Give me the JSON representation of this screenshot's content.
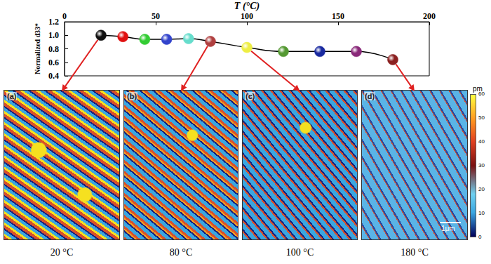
{
  "chart_data": {
    "type": "line",
    "x_label": "T (°C)",
    "y_label": "Normalized d33*",
    "x": [
      20,
      32,
      44,
      56,
      68,
      80,
      100,
      120,
      140,
      160,
      180
    ],
    "values": [
      1.0,
      0.98,
      0.94,
      0.94,
      0.95,
      0.91,
      0.82,
      0.76,
      0.76,
      0.76,
      0.64
    ],
    "color": "#000000",
    "colors": [
      "#111111",
      "#e01010",
      "#33cc33",
      "#3344cc",
      "#66ddcc",
      "#b04040",
      "#eeee44",
      "#559933",
      "#1a2aa0",
      "#8a2a7a",
      "#8b2020"
    ],
    "marker": "sphere",
    "xlim": [
      0,
      200
    ],
    "xticks": [
      0,
      50,
      100,
      150,
      200
    ],
    "ylim": [
      0.4,
      1.2
    ],
    "yticks": [
      0.4,
      0.6,
      0.8,
      {
        "value": 1,
        "label": "1.0"
      },
      1.2
    ],
    "grid": false
  },
  "panels": [
    {
      "letter": "(a)",
      "label": "20 °C",
      "T": 20
    },
    {
      "letter": "(b)",
      "label": "80 °C",
      "T": 80
    },
    {
      "letter": "(c)",
      "label": "100 °C",
      "T": 100
    },
    {
      "letter": "(d)",
      "label": "180 °C",
      "T": 180
    }
  ],
  "colorbar": {
    "title": "pm",
    "range": [
      0,
      60
    ],
    "ticks": [
      0,
      10,
      20,
      30,
      40,
      50,
      60
    ]
  },
  "scale_bar": "1μm"
}
